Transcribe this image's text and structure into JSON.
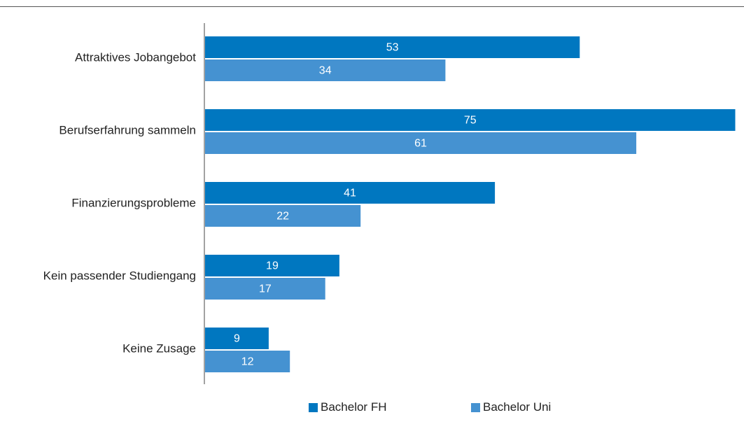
{
  "chart_data": {
    "type": "bar",
    "orientation": "horizontal",
    "categories": [
      "Attraktives Jobangebot",
      "Berufserfahrung sammeln",
      "Finanzierungsprobleme",
      "Kein passender Studiengang",
      "Keine Zusage"
    ],
    "series": [
      {
        "name": "Bachelor FH",
        "values": [
          53,
          75,
          41,
          19,
          9
        ],
        "color": "#0077c0"
      },
      {
        "name": "Bachelor Uni",
        "values": [
          34,
          61,
          22,
          17,
          12
        ],
        "color": "#4592d1"
      }
    ],
    "xlim": [
      0,
      75
    ],
    "grid": false,
    "data_labels": true,
    "legend_position": "bottom"
  }
}
